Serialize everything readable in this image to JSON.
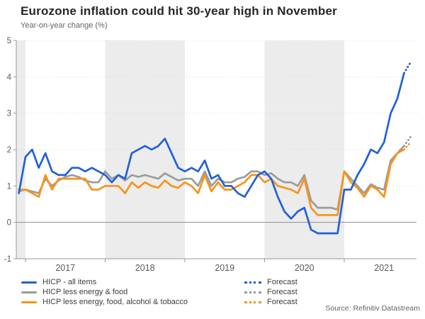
{
  "header": {
    "title": "Eurozone inflation could hit 30-year high in November",
    "subtitle": "Year-on-year change (%)"
  },
  "source": "Source: Refinitiv Datastream",
  "colors": {
    "blue": "#2160d9",
    "gray": "#9b9b9b",
    "orange": "#f7941a",
    "band": "#ececec",
    "grid": "#d9d9d9",
    "axis": "#979797",
    "zero_line": "#8c8c8c",
    "tick_text": "#595959"
  },
  "chart_data": {
    "type": "line",
    "title": "Eurozone inflation could hit 30-year high in November",
    "subtitle": "Year-on-year change (%)",
    "xlabel": "",
    "ylabel": "Year-on-year change (%)",
    "ylim": [
      -1,
      5
    ],
    "yticks": [
      5,
      4,
      3,
      2,
      1,
      0,
      -1
    ],
    "x_start_month": "2016-12",
    "x_end_month": "2021-10",
    "forecast_month": "2021-11",
    "grid": "dotted horizontal at integers, solid line at 0",
    "legend_position": "bottom-left",
    "xticks_years": [
      "2017",
      "2018",
      "2019",
      "2020",
      "2021"
    ],
    "year_tick_month_index": [
      1,
      13,
      25,
      37,
      49
    ],
    "year_label_month_center": [
      7,
      19,
      31,
      43,
      55
    ],
    "shaded_band_month_ranges": [
      [
        -0.38,
        1
      ],
      [
        13,
        25
      ],
      [
        37,
        49
      ]
    ],
    "series": [
      {
        "name": "HICP - all items",
        "color": "#2160d9",
        "forecast_label": "Forecast",
        "values": [
          0.8,
          1.8,
          2.0,
          1.5,
          1.9,
          1.4,
          1.3,
          1.3,
          1.5,
          1.5,
          1.4,
          1.5,
          1.4,
          1.3,
          1.1,
          1.3,
          1.2,
          1.9,
          2.0,
          2.1,
          2.0,
          2.1,
          2.3,
          1.9,
          1.5,
          1.4,
          1.5,
          1.4,
          1.7,
          1.2,
          1.3,
          1.0,
          1.0,
          0.8,
          0.7,
          1.0,
          1.3,
          1.4,
          1.2,
          0.7,
          0.3,
          0.1,
          0.3,
          0.4,
          -0.2,
          -0.3,
          -0.3,
          -0.3,
          -0.3,
          0.9,
          0.9,
          1.3,
          1.6,
          2.0,
          1.9,
          2.2,
          3.0,
          3.4,
          4.1
        ],
        "forecast_values": [
          4.1,
          4.4
        ]
      },
      {
        "name": "HICP less energy & food",
        "color": "#9b9b9b",
        "forecast_label": "Forecast",
        "values": [
          0.85,
          0.9,
          0.85,
          0.8,
          1.2,
          1.0,
          1.15,
          1.25,
          1.3,
          1.25,
          1.15,
          1.1,
          1.1,
          1.4,
          1.2,
          1.3,
          1.15,
          1.3,
          1.25,
          1.3,
          1.25,
          1.2,
          1.35,
          1.25,
          1.15,
          1.2,
          1.2,
          1.0,
          1.4,
          1.0,
          1.2,
          1.1,
          1.1,
          1.2,
          1.25,
          1.4,
          1.4,
          1.3,
          1.35,
          1.2,
          1.1,
          1.1,
          1.0,
          1.3,
          0.6,
          0.4,
          0.4,
          0.4,
          0.35,
          1.4,
          1.2,
          1.0,
          0.8,
          1.05,
          0.95,
          0.9,
          1.7,
          1.9,
          2.1
        ],
        "forecast_values": [
          2.1,
          2.35
        ]
      },
      {
        "name": "HICP less energy, food, alcohol & tobacco",
        "color": "#f7941a",
        "forecast_label": "Forecast",
        "values": [
          0.9,
          0.9,
          0.8,
          0.7,
          1.3,
          0.9,
          1.2,
          1.2,
          1.2,
          1.2,
          1.2,
          0.9,
          0.9,
          1.0,
          1.0,
          1.0,
          0.8,
          1.1,
          0.95,
          1.1,
          1.0,
          0.95,
          1.15,
          1.0,
          0.95,
          1.1,
          1.0,
          0.8,
          1.3,
          0.85,
          1.1,
          0.9,
          0.9,
          1.0,
          1.1,
          1.3,
          1.3,
          1.1,
          1.2,
          1.0,
          0.95,
          0.9,
          0.8,
          1.2,
          0.4,
          0.2,
          0.2,
          0.2,
          0.2,
          1.4,
          1.1,
          0.95,
          0.7,
          1.0,
          0.9,
          0.7,
          1.6,
          1.9,
          2.0
        ],
        "forecast_values": [
          2.0,
          2.2
        ]
      }
    ]
  }
}
